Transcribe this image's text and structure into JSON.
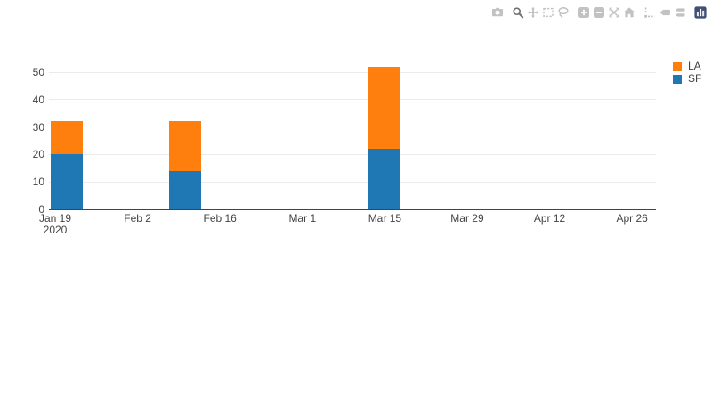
{
  "modebar": {
    "groups": [
      [
        {
          "icon": "camera-icon",
          "name": "download-png-button",
          "active": false
        }
      ],
      [
        {
          "icon": "zoom-icon",
          "name": "zoom-mode-button",
          "active": true
        },
        {
          "icon": "pan-icon",
          "name": "pan-mode-button",
          "active": false
        },
        {
          "icon": "box-select-icon",
          "name": "box-select-button",
          "active": false
        },
        {
          "icon": "lasso-select-icon",
          "name": "lasso-select-button",
          "active": false
        }
      ],
      [
        {
          "icon": "zoom-in-icon",
          "name": "zoom-in-button",
          "active": false
        },
        {
          "icon": "zoom-out-icon",
          "name": "zoom-out-button",
          "active": false
        },
        {
          "icon": "autoscale-icon",
          "name": "autoscale-button",
          "active": false
        },
        {
          "icon": "home-icon",
          "name": "reset-axes-button",
          "active": false
        }
      ],
      [
        {
          "icon": "spikelines-icon",
          "name": "toggle-spikelines-button",
          "active": false
        },
        {
          "icon": "hover-closest-icon",
          "name": "hover-closest-button",
          "active": false
        },
        {
          "icon": "hover-compare-icon",
          "name": "hover-compare-button",
          "active": false
        }
      ],
      [
        {
          "icon": "plotly-logo-icon",
          "name": "plotly-logo-button",
          "active": false
        }
      ]
    ]
  },
  "colors": {
    "la": "#ff7f0e",
    "sf": "#1f77b4",
    "axis_text": "#444444",
    "gridline": "#ebebeb",
    "zeroline": "#444444",
    "logo_blue": "#3f4f75"
  },
  "chart_data": {
    "type": "bar",
    "stacked": true,
    "title": "",
    "xlabel": "",
    "ylabel": "",
    "grid": true,
    "legend_position": "top-right",
    "x": [
      "2020-01-21",
      "2020-02-10",
      "2020-03-15"
    ],
    "series": [
      {
        "name": "LA",
        "color": "#ff7f0e",
        "values": [
          12,
          18,
          30
        ]
      },
      {
        "name": "SF",
        "color": "#1f77b4",
        "values": [
          20,
          14,
          22
        ]
      }
    ],
    "stack_totals": [
      32,
      32,
      52
    ],
    "yticks": [
      0,
      10,
      20,
      30,
      40,
      50
    ],
    "ylim": [
      0,
      55
    ],
    "xaxis": {
      "start_date": "2020-01-19",
      "tick_interval_days": 14,
      "ticks": [
        {
          "label": "Jan 19",
          "sublabel": "2020"
        },
        {
          "label": "Feb 2"
        },
        {
          "label": "Feb 16"
        },
        {
          "label": "Mar 1"
        },
        {
          "label": "Mar 15"
        },
        {
          "label": "Mar 29"
        },
        {
          "label": "Apr 12"
        },
        {
          "label": "Apr 26"
        }
      ]
    }
  }
}
